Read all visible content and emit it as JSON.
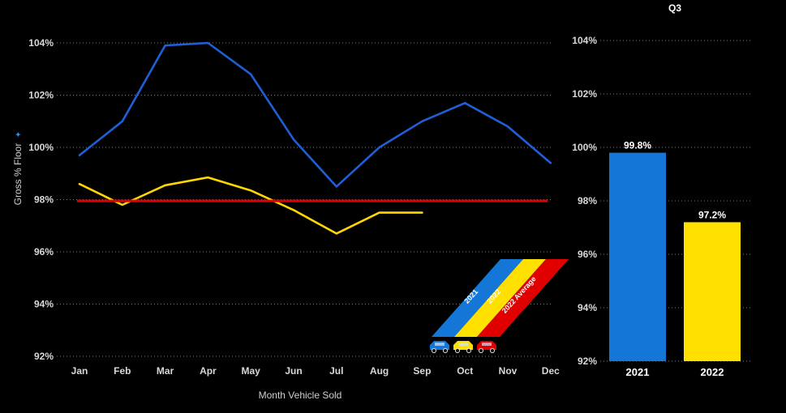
{
  "chart_data": [
    {
      "type": "line",
      "categories": [
        "Jan",
        "Feb",
        "Mar",
        "Apr",
        "May",
        "Jun",
        "Jul",
        "Aug",
        "Sep",
        "Oct",
        "Nov",
        "Dec"
      ],
      "series": [
        {
          "name": "2021",
          "color": "#1f5fd6",
          "values": [
            99.7,
            101.0,
            103.9,
            104.0,
            102.8,
            100.3,
            98.5,
            100.0,
            101.0,
            101.7,
            100.8,
            99.4
          ]
        },
        {
          "name": "2022",
          "color": "#ffd600",
          "values": [
            98.6,
            97.8,
            98.55,
            98.85,
            98.35,
            97.6,
            96.7,
            97.5,
            97.5,
            null,
            null,
            null
          ]
        },
        {
          "name": "2022 Average",
          "color": "#e00000",
          "values": [
            97.95,
            97.95,
            97.95,
            97.95,
            97.95,
            97.95,
            97.95,
            97.95,
            97.95,
            97.95,
            97.95,
            97.95
          ]
        }
      ],
      "xlabel": "Month Vehicle Sold",
      "ylabel": "Gross % Floor",
      "ylim": [
        92,
        104
      ],
      "yticks": [
        "92%",
        "94%",
        "96%",
        "98%",
        "100%",
        "102%",
        "104%"
      ],
      "grid": true
    },
    {
      "type": "bar",
      "title": "Q3",
      "categories": [
        "2021",
        "2022"
      ],
      "values": [
        99.8,
        97.2
      ],
      "data_labels": [
        "99.8%",
        "97.2%"
      ],
      "colors": [
        "#1477d8",
        "#ffe000"
      ],
      "ylim": [
        92,
        104
      ],
      "yticks": [
        "92%",
        "94%",
        "96%",
        "98%",
        "100%",
        "102%",
        "104%"
      ],
      "grid": true
    }
  ],
  "legend": {
    "entries": [
      {
        "label": "2021",
        "color": "#1477d8"
      },
      {
        "label": "2022",
        "color": "#ffe000"
      },
      {
        "label": "2022 Average",
        "color": "#e00000"
      }
    ],
    "icon": "car-icon"
  },
  "ylabel_marker": "✦"
}
